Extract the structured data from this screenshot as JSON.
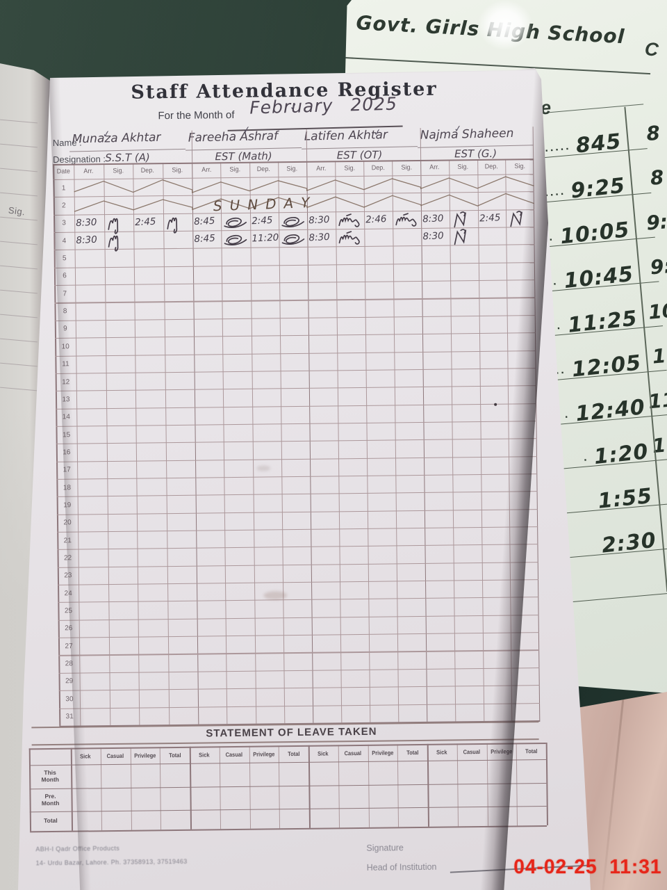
{
  "register": {
    "title": "Staff Attendance Register",
    "subtitle": "For the Month of",
    "month": "February 2025",
    "name_label": "Name :",
    "designation_label": "Designation :",
    "check_glyph": "✓",
    "teachers": [
      {
        "name": "Munaza Akhtar",
        "designation": "S.S.T (A)"
      },
      {
        "name": "Fareeha Ashraf",
        "designation": "EST (Math)"
      },
      {
        "name": "Latifen Akhtar",
        "designation": "EST (OT)"
      },
      {
        "name": "Najma Shaheen",
        "designation": "EST (G.)"
      }
    ],
    "table": {
      "date_label": "Date",
      "sub_headers": [
        "Arr.",
        "Sig.",
        "Dep.",
        "Sig."
      ],
      "row_count": 31,
      "crossed_rows": [
        1,
        2
      ],
      "sunday_label": "SUNDAY",
      "entries": {
        "3": [
          [
            "8:30",
            "~",
            "2:45",
            "~"
          ],
          [
            "8:45",
            "~",
            "2:45",
            "~"
          ],
          [
            "8:30",
            "~",
            "2:46",
            "~"
          ],
          [
            "8:30",
            "~",
            "2:45",
            "~"
          ]
        ],
        "4": [
          [
            "8:30",
            "~",
            "",
            ""
          ],
          [
            "8:45",
            "~",
            "11:20",
            "~"
          ],
          [
            "8:30",
            "~",
            "",
            ""
          ],
          [
            "8:30",
            "~",
            "",
            ""
          ]
        ]
      }
    },
    "leave": {
      "title": "STATEMENT OF LEAVE TAKEN",
      "col_headers": [
        "Sick",
        "Casual",
        "Privilege",
        "Total"
      ],
      "row_headers": [
        "This Month",
        "Pre. Month",
        "Total"
      ]
    },
    "footer": {
      "print_line1": "ABH-I Qadr Office Products",
      "print_line2": "14- Urdu Bazar, Lahore. Ph. 37358913, 37519463",
      "signature_label": "Signature",
      "head_label": "Head of Institution"
    }
  },
  "side_page": {
    "school_name": "Govt. Girls High School",
    "partial_letter_left": "e",
    "partial_letter_right": "C",
    "schedule": [
      {
        "dots": "........",
        "time": "845",
        "partial": "8"
      },
      {
        "dots": ".......",
        "time": "9:25",
        "partial": "8"
      },
      {
        "dots": "......",
        "time": "10:05",
        "partial": "9:"
      },
      {
        "dots": "....",
        "time": "10:45",
        "partial": "9:"
      },
      {
        "dots": "..",
        "time": "11:25",
        "partial": "10"
      },
      {
        "dots": "..",
        "time": "12:05",
        "partial": "11"
      },
      {
        "dots": ".",
        "time": "12:40",
        "partial": "11:"
      },
      {
        "dots": ".",
        "time": "1:20",
        "partial": "11:"
      },
      {
        "dots": "",
        "time": "1:55",
        "partial": ""
      },
      {
        "dots": "",
        "time": "2:30",
        "partial": ""
      }
    ]
  },
  "left_page": {
    "label": "Sig."
  },
  "camera": {
    "timestamp": "04-02-25  11:31",
    "color": "#e6261a"
  }
}
